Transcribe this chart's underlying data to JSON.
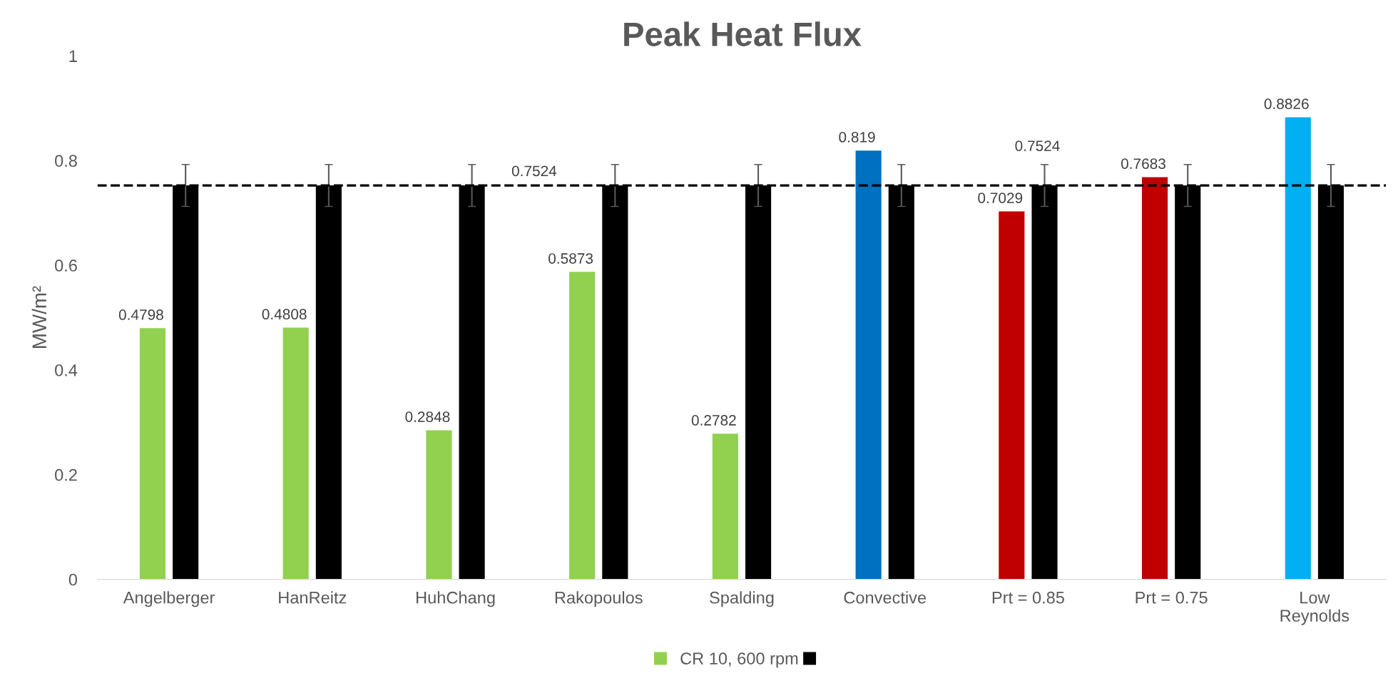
{
  "chart_data": {
    "type": "bar",
    "title": "Peak Heat Flux",
    "ylabel": "MW/m²",
    "categories": [
      "Angelberger",
      "HanReitz",
      "HuhChang",
      "Rakopoulos",
      "Spalding",
      "Convective",
      "Prt = 0.85",
      "Prt = 0.75",
      "Low\nReynolds"
    ],
    "series": [
      {
        "name": "CR 10, 600 rpm",
        "color": "#92d050",
        "colors": [
          "#92d050",
          "#92d050",
          "#92d050",
          "#92d050",
          "#92d050",
          "#0070c0",
          "#c00000",
          "#c00000",
          "#00b0f0"
        ],
        "values": [
          0.4798,
          0.4808,
          0.2848,
          0.5873,
          0.2782,
          0.819,
          0.7029,
          0.7683,
          0.8826
        ],
        "value_labels": [
          "0.4798",
          "0.4808",
          "0.2848",
          "0.5873",
          "0.2782",
          "0.819",
          "0.7029",
          "0.7683",
          "0.8826"
        ]
      },
      {
        "color": "#000000",
        "values": [
          0.7524,
          0.7524,
          0.7524,
          0.7524,
          0.7524,
          0.7524,
          0.7524,
          0.7524,
          0.7524
        ],
        "errors": [
          0.04,
          0.04,
          0.04,
          0.04,
          0.04,
          0.04,
          0.04,
          0.04,
          0.04
        ],
        "value_labels": [
          null,
          null,
          null,
          null,
          null,
          null,
          "0.7524",
          null,
          null
        ]
      }
    ],
    "ref_lines": [
      {
        "axis": "y",
        "value": 0.7524,
        "label": "0.7524",
        "color": "#000000",
        "line_style": "dashed"
      }
    ],
    "ylim": [
      0,
      1
    ],
    "yticks": [
      0,
      0.2,
      0.4,
      0.6,
      0.8,
      1
    ],
    "grid": false,
    "legend": "bottom"
  }
}
